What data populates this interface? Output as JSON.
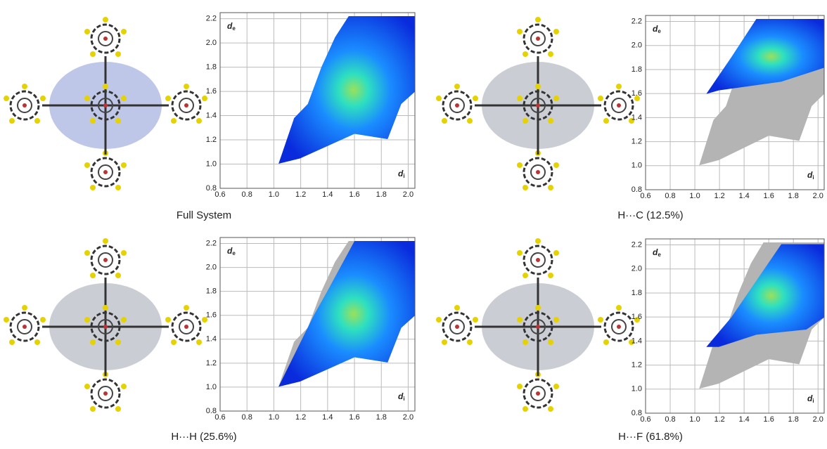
{
  "chart_data": [
    {
      "type": "scatter",
      "title": "Full System",
      "xlabel": "d",
      "xlabel_sub": "i",
      "ylabel": "d",
      "ylabel_sub": "e",
      "xlim": [
        0.6,
        2.05
      ],
      "ylim": [
        0.8,
        2.25
      ],
      "xticks": [
        0.6,
        0.8,
        {
          "value": 1,
          "label": "1.0"
        },
        1.2,
        1.4,
        1.6,
        1.8,
        {
          "value": 2,
          "label": "2.0"
        }
      ],
      "yticks": [
        0.8,
        {
          "value": 1,
          "label": "1.0"
        },
        1.2,
        1.4,
        1.6,
        1.8,
        {
          "value": 2,
          "label": "2.0"
        },
        2.2
      ],
      "grid": true
    },
    {
      "type": "scatter",
      "title": "H···C (12.5%)",
      "xlabel": "d",
      "xlabel_sub": "i",
      "ylabel": "d",
      "ylabel_sub": "e",
      "xlim": [
        0.6,
        2.05
      ],
      "ylim": [
        0.8,
        2.25
      ],
      "xticks": [
        0.6,
        0.8,
        {
          "value": 1,
          "label": "1.0"
        },
        1.2,
        1.4,
        1.6,
        1.8,
        {
          "value": 2,
          "label": "2.0"
        }
      ],
      "yticks": [
        0.8,
        {
          "value": 1,
          "label": "1.0"
        },
        1.2,
        1.4,
        1.6,
        1.8,
        {
          "value": 2,
          "label": "2.0"
        },
        2.2
      ],
      "grid": true
    },
    {
      "type": "scatter",
      "title": "H···H (25.6%)",
      "xlabel": "d",
      "xlabel_sub": "i",
      "ylabel": "d",
      "ylabel_sub": "e",
      "xlim": [
        0.6,
        2.05
      ],
      "ylim": [
        0.8,
        2.25
      ],
      "xticks": [
        0.6,
        0.8,
        {
          "value": 1,
          "label": "1.0"
        },
        1.2,
        1.4,
        1.6,
        1.8,
        {
          "value": 2,
          "label": "2.0"
        }
      ],
      "yticks": [
        0.8,
        {
          "value": 1,
          "label": "1.0"
        },
        1.2,
        1.4,
        1.6,
        1.8,
        {
          "value": 2,
          "label": "2.0"
        },
        2.2
      ],
      "grid": true
    },
    {
      "type": "scatter",
      "title": "H···F (61.8%)",
      "xlabel": "d",
      "xlabel_sub": "i",
      "ylabel": "d",
      "ylabel_sub": "e",
      "xlim": [
        0.6,
        2.05
      ],
      "ylim": [
        0.8,
        2.25
      ],
      "xticks": [
        0.6,
        0.8,
        {
          "value": 1,
          "label": "1.0"
        },
        1.2,
        1.4,
        1.6,
        1.8,
        {
          "value": 2,
          "label": "2.0"
        }
      ],
      "yticks": [
        0.8,
        {
          "value": 1,
          "label": "1.0"
        },
        1.2,
        1.4,
        1.6,
        1.8,
        {
          "value": 2,
          "label": "2.0"
        },
        2.2
      ],
      "grid": true
    }
  ]
}
